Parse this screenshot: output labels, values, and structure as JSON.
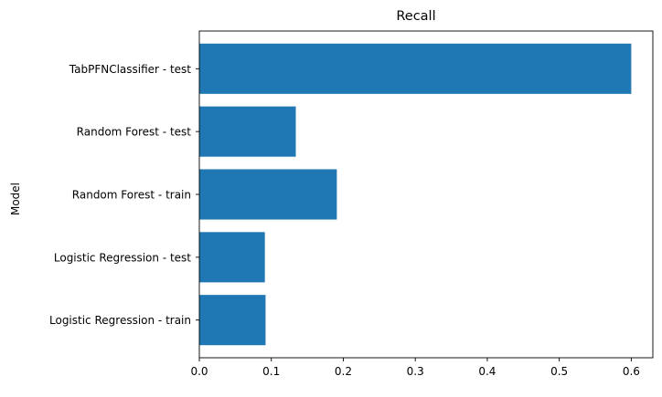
{
  "chart_data": {
    "type": "bar",
    "orientation": "horizontal",
    "title": "Recall",
    "xlabel": "",
    "ylabel": "Model",
    "categories": [
      "Logistic Regression - train",
      "Logistic Regression - test",
      "Random Forest - train",
      "Random Forest - test",
      "TabPFNClassifier - test"
    ],
    "values": [
      0.092,
      0.091,
      0.191,
      0.134,
      0.6
    ],
    "xlim": [
      0,
      0.63
    ],
    "xticks": [
      0.0,
      0.1,
      0.2,
      0.3,
      0.4,
      0.5,
      0.6
    ],
    "xtick_labels": [
      "0.0",
      "0.1",
      "0.2",
      "0.3",
      "0.4",
      "0.5",
      "0.6"
    ],
    "grid": false,
    "bar_color": "#1f77b4"
  }
}
